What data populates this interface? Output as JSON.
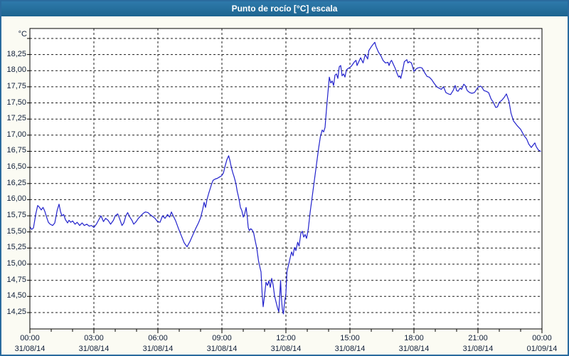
{
  "window": {
    "title": "Punto de rocío [°C] escala"
  },
  "colors": {
    "window_border": "#2a6b9e",
    "titlebar_bg": "#1f6b9e",
    "titlebar_text": "#ffffff",
    "page_bg": "#fbfbf3",
    "plot_bg": "#ffffff",
    "plot_border": "#000000",
    "grid": "#1c1c1c",
    "axis_text": "#0f1e38",
    "series_line": "#2222cc"
  },
  "chart_data": {
    "type": "line",
    "title": "Punto de rocío [°C] escala",
    "xlabel": "",
    "ylabel": "°C",
    "legend": "none",
    "grid": true,
    "ylim": [
      13.996,
      18.654
    ],
    "xlim_minutes": [
      0,
      1440
    ],
    "y_grid": {
      "start": 14.25,
      "end": 18.5,
      "step": 0.25
    },
    "y_axis": {
      "ticks": [
        {
          "v": 18.25,
          "label": "18,25"
        },
        {
          "v": 18.0,
          "label": "18,00"
        },
        {
          "v": 17.75,
          "label": "17,75"
        },
        {
          "v": 17.5,
          "label": "17,50"
        },
        {
          "v": 17.25,
          "label": "17,25"
        },
        {
          "v": 17.0,
          "label": "17,00"
        },
        {
          "v": 16.75,
          "label": "16,75"
        },
        {
          "v": 16.5,
          "label": "16,50"
        },
        {
          "v": 16.25,
          "label": "16,25"
        },
        {
          "v": 16.0,
          "label": "16,00"
        },
        {
          "v": 15.75,
          "label": "15,75"
        },
        {
          "v": 15.5,
          "label": "15,50"
        },
        {
          "v": 15.25,
          "label": "15,25"
        },
        {
          "v": 15.0,
          "label": "15,00"
        },
        {
          "v": 14.75,
          "label": "14,75"
        },
        {
          "v": 14.5,
          "label": "14,50"
        },
        {
          "v": 14.25,
          "label": "14,25"
        }
      ]
    },
    "x_axis": {
      "major_step_hours": 3,
      "minor_step_hours": 1,
      "ticks": [
        {
          "h": 0,
          "time": "00:00",
          "date": "31/08/14"
        },
        {
          "h": 3,
          "time": "03:00",
          "date": "31/08/14"
        },
        {
          "h": 6,
          "time": "06:00",
          "date": "31/08/14"
        },
        {
          "h": 9,
          "time": "09:00",
          "date": "31/08/14"
        },
        {
          "h": 12,
          "time": "12:00",
          "date": "31/08/14"
        },
        {
          "h": 15,
          "time": "15:00",
          "date": "31/08/14"
        },
        {
          "h": 18,
          "time": "18:00",
          "date": "31/08/14"
        },
        {
          "h": 21,
          "time": "21:00",
          "date": "31/08/14"
        },
        {
          "h": 24,
          "time": "00:00",
          "date": "01/09/14"
        }
      ]
    },
    "series": [
      {
        "name": "Punto de rocío",
        "color": "#2222cc",
        "points": [
          [
            0,
            15.58
          ],
          [
            5,
            15.54
          ],
          [
            10,
            15.56
          ],
          [
            17,
            15.79
          ],
          [
            22,
            15.91
          ],
          [
            27,
            15.88
          ],
          [
            32,
            15.84
          ],
          [
            37,
            15.88
          ],
          [
            42,
            15.82
          ],
          [
            47,
            15.73
          ],
          [
            52,
            15.65
          ],
          [
            57,
            15.62
          ],
          [
            64,
            15.6
          ],
          [
            70,
            15.64
          ],
          [
            77,
            15.84
          ],
          [
            82,
            15.93
          ],
          [
            86,
            15.82
          ],
          [
            90,
            15.75
          ],
          [
            95,
            15.77
          ],
          [
            100,
            15.69
          ],
          [
            106,
            15.64
          ],
          [
            110,
            15.68
          ],
          [
            115,
            15.65
          ],
          [
            120,
            15.67
          ],
          [
            127,
            15.62
          ],
          [
            133,
            15.65
          ],
          [
            140,
            15.6
          ],
          [
            147,
            15.64
          ],
          [
            153,
            15.6
          ],
          [
            160,
            15.62
          ],
          [
            167,
            15.59
          ],
          [
            173,
            15.6
          ],
          [
            180,
            15.57
          ],
          [
            187,
            15.62
          ],
          [
            193,
            15.68
          ],
          [
            200,
            15.75
          ],
          [
            207,
            15.66
          ],
          [
            213,
            15.71
          ],
          [
            220,
            15.68
          ],
          [
            227,
            15.62
          ],
          [
            235,
            15.68
          ],
          [
            240,
            15.75
          ],
          [
            247,
            15.78
          ],
          [
            252,
            15.71
          ],
          [
            259,
            15.6
          ],
          [
            264,
            15.64
          ],
          [
            270,
            15.75
          ],
          [
            275,
            15.8
          ],
          [
            281,
            15.73
          ],
          [
            287,
            15.68
          ],
          [
            292,
            15.62
          ],
          [
            299,
            15.66
          ],
          [
            305,
            15.71
          ],
          [
            312,
            15.75
          ],
          [
            319,
            15.79
          ],
          [
            325,
            15.81
          ],
          [
            332,
            15.8
          ],
          [
            338,
            15.77
          ],
          [
            345,
            15.74
          ],
          [
            352,
            15.71
          ],
          [
            359,
            15.66
          ],
          [
            366,
            15.65
          ],
          [
            373,
            15.75
          ],
          [
            380,
            15.71
          ],
          [
            387,
            15.77
          ],
          [
            393,
            15.73
          ],
          [
            398,
            15.81
          ],
          [
            403,
            15.75
          ],
          [
            410,
            15.67
          ],
          [
            418,
            15.55
          ],
          [
            426,
            15.44
          ],
          [
            434,
            15.33
          ],
          [
            442,
            15.27
          ],
          [
            450,
            15.35
          ],
          [
            458,
            15.45
          ],
          [
            466,
            15.55
          ],
          [
            474,
            15.64
          ],
          [
            480,
            15.72
          ],
          [
            486,
            15.85
          ],
          [
            490,
            15.96
          ],
          [
            494,
            15.88
          ],
          [
            498,
            16.0
          ],
          [
            503,
            16.1
          ],
          [
            507,
            16.17
          ],
          [
            511,
            16.24
          ],
          [
            515,
            16.3
          ],
          [
            521,
            16.32
          ],
          [
            527,
            16.33
          ],
          [
            533,
            16.35
          ],
          [
            539,
            16.37
          ],
          [
            544,
            16.41
          ],
          [
            549,
            16.52
          ],
          [
            554,
            16.62
          ],
          [
            559,
            16.68
          ],
          [
            562,
            16.62
          ],
          [
            565,
            16.54
          ],
          [
            568,
            16.47
          ],
          [
            571,
            16.41
          ],
          [
            574,
            16.36
          ],
          [
            577,
            16.3
          ],
          [
            580,
            16.23
          ],
          [
            583,
            16.13
          ],
          [
            586,
            16.06
          ],
          [
            589,
            15.98
          ],
          [
            592,
            15.88
          ],
          [
            596,
            15.83
          ],
          [
            600,
            15.73
          ],
          [
            604,
            15.78
          ],
          [
            608,
            15.88
          ],
          [
            611,
            15.75
          ],
          [
            614,
            15.57
          ],
          [
            617,
            15.52
          ],
          [
            621,
            15.55
          ],
          [
            625,
            15.53
          ],
          [
            629,
            15.49
          ],
          [
            633,
            15.38
          ],
          [
            638,
            15.25
          ],
          [
            643,
            15.05
          ],
          [
            647,
            14.95
          ],
          [
            650,
            14.88
          ],
          [
            653,
            14.55
          ],
          [
            656,
            14.34
          ],
          [
            660,
            14.52
          ],
          [
            664,
            14.72
          ],
          [
            668,
            14.67
          ],
          [
            672,
            14.74
          ],
          [
            676,
            14.64
          ],
          [
            680,
            14.78
          ],
          [
            684,
            14.68
          ],
          [
            688,
            14.51
          ],
          [
            692,
            14.42
          ],
          [
            696,
            14.33
          ],
          [
            700,
            14.26
          ],
          [
            703,
            14.55
          ],
          [
            705,
            14.75
          ],
          [
            707,
            14.5
          ],
          [
            710,
            14.3
          ],
          [
            713,
            14.23
          ],
          [
            716,
            14.4
          ],
          [
            720,
            14.55
          ],
          [
            723,
            14.89
          ],
          [
            728,
            15.0
          ],
          [
            732,
            15.1
          ],
          [
            736,
            15.19
          ],
          [
            740,
            15.13
          ],
          [
            744,
            15.26
          ],
          [
            748,
            15.21
          ],
          [
            753,
            15.34
          ],
          [
            757,
            15.28
          ],
          [
            762,
            15.48
          ],
          [
            766,
            15.51
          ],
          [
            770,
            15.42
          ],
          [
            774,
            15.46
          ],
          [
            778,
            15.4
          ],
          [
            783,
            15.55
          ],
          [
            788,
            15.8
          ],
          [
            794,
            16.05
          ],
          [
            800,
            16.3
          ],
          [
            806,
            16.55
          ],
          [
            812,
            16.8
          ],
          [
            817,
            16.98
          ],
          [
            822,
            17.08
          ],
          [
            826,
            17.05
          ],
          [
            830,
            17.12
          ],
          [
            834,
            17.4
          ],
          [
            838,
            17.65
          ],
          [
            842,
            17.9
          ],
          [
            846,
            17.81
          ],
          [
            850,
            17.84
          ],
          [
            854,
            17.77
          ],
          [
            858,
            17.93
          ],
          [
            862,
            17.95
          ],
          [
            866,
            17.88
          ],
          [
            870,
            18.06
          ],
          [
            874,
            18.08
          ],
          [
            878,
            17.92
          ],
          [
            882,
            17.95
          ],
          [
            886,
            17.9
          ],
          [
            890,
            18.01
          ],
          [
            894,
            18.03
          ],
          [
            900,
            18.05
          ],
          [
            904,
            18.07
          ],
          [
            913,
            18.14
          ],
          [
            917,
            18.16
          ],
          [
            920,
            18.08
          ],
          [
            930,
            18.2
          ],
          [
            937,
            18.12
          ],
          [
            943,
            18.25
          ],
          [
            950,
            18.18
          ],
          [
            953,
            18.31
          ],
          [
            960,
            18.37
          ],
          [
            964,
            18.4
          ],
          [
            970,
            18.44
          ],
          [
            973,
            18.38
          ],
          [
            980,
            18.29
          ],
          [
            987,
            18.23
          ],
          [
            993,
            18.16
          ],
          [
            1000,
            18.12
          ],
          [
            1007,
            18.13
          ],
          [
            1010,
            18.08
          ],
          [
            1014,
            18.14
          ],
          [
            1017,
            18.16
          ],
          [
            1027,
            18.04
          ],
          [
            1033,
            17.95
          ],
          [
            1037,
            17.9
          ],
          [
            1040,
            17.92
          ],
          [
            1043,
            17.88
          ],
          [
            1048,
            18.0
          ],
          [
            1053,
            18.14
          ],
          [
            1060,
            18.17
          ],
          [
            1063,
            18.12
          ],
          [
            1067,
            18.14
          ],
          [
            1070,
            18.13
          ],
          [
            1073,
            18.12
          ],
          [
            1080,
            17.99
          ],
          [
            1085,
            18.02
          ],
          [
            1090,
            18.04
          ],
          [
            1097,
            18.05
          ],
          [
            1103,
            18.04
          ],
          [
            1110,
            17.97
          ],
          [
            1117,
            17.91
          ],
          [
            1123,
            17.9
          ],
          [
            1130,
            17.86
          ],
          [
            1136,
            17.81
          ],
          [
            1144,
            17.75
          ],
          [
            1150,
            17.73
          ],
          [
            1157,
            17.71
          ],
          [
            1163,
            17.75
          ],
          [
            1170,
            17.66
          ],
          [
            1177,
            17.64
          ],
          [
            1183,
            17.63
          ],
          [
            1190,
            17.69
          ],
          [
            1196,
            17.77
          ],
          [
            1200,
            17.69
          ],
          [
            1204,
            17.68
          ],
          [
            1210,
            17.73
          ],
          [
            1214,
            17.71
          ],
          [
            1220,
            17.79
          ],
          [
            1224,
            17.77
          ],
          [
            1230,
            17.69
          ],
          [
            1237,
            17.66
          ],
          [
            1243,
            17.65
          ],
          [
            1250,
            17.66
          ],
          [
            1261,
            17.75
          ],
          [
            1267,
            17.76
          ],
          [
            1270,
            17.75
          ],
          [
            1277,
            17.69
          ],
          [
            1283,
            17.68
          ],
          [
            1290,
            17.66
          ],
          [
            1297,
            17.56
          ],
          [
            1303,
            17.51
          ],
          [
            1310,
            17.43
          ],
          [
            1315,
            17.44
          ],
          [
            1320,
            17.51
          ],
          [
            1327,
            17.54
          ],
          [
            1333,
            17.58
          ],
          [
            1340,
            17.64
          ],
          [
            1347,
            17.53
          ],
          [
            1353,
            17.34
          ],
          [
            1360,
            17.22
          ],
          [
            1370,
            17.15
          ],
          [
            1380,
            17.09
          ],
          [
            1390,
            16.99
          ],
          [
            1397,
            16.94
          ],
          [
            1403,
            16.86
          ],
          [
            1410,
            16.81
          ],
          [
            1417,
            16.86
          ],
          [
            1420,
            16.88
          ],
          [
            1424,
            16.82
          ],
          [
            1430,
            16.77
          ],
          [
            1436,
            16.75
          ]
        ]
      }
    ]
  }
}
